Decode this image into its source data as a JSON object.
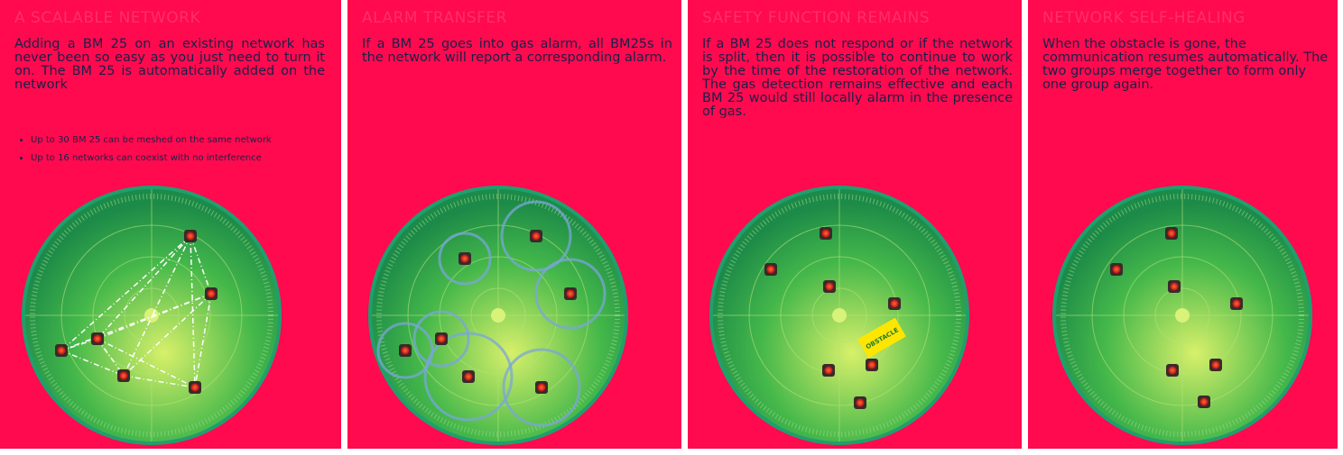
{
  "panels": [
    {
      "title": "A scalable network",
      "text": "Adding a BM 25 on an existing network has never been so easy as you just need to turn it on. The BM 25 is automatically added on the network",
      "bullets": [
        "Up to 30 BM 25 can be meshed on the same network",
        "Up to 16 networks can coexist with no interference"
      ]
    },
    {
      "title": "Alarm transfer",
      "text": "If a BM 25 goes into gas alarm, all BM25s in the network will report a corresponding alarm."
    },
    {
      "title": "Safety function remains",
      "text": "If a BM 25 does not respond or if the network is split, then it is possible to continue to work by the time of the restoration of the network. The gas detection remains effective and each BM 25 would still locally alarm in the presence of gas.",
      "obstacle": "OBSTACLE"
    },
    {
      "title": "Network self-healing",
      "text": "When the obstacle is gone, the communication resumes automatically. The two groups merge together to form only one group again."
    }
  ]
}
